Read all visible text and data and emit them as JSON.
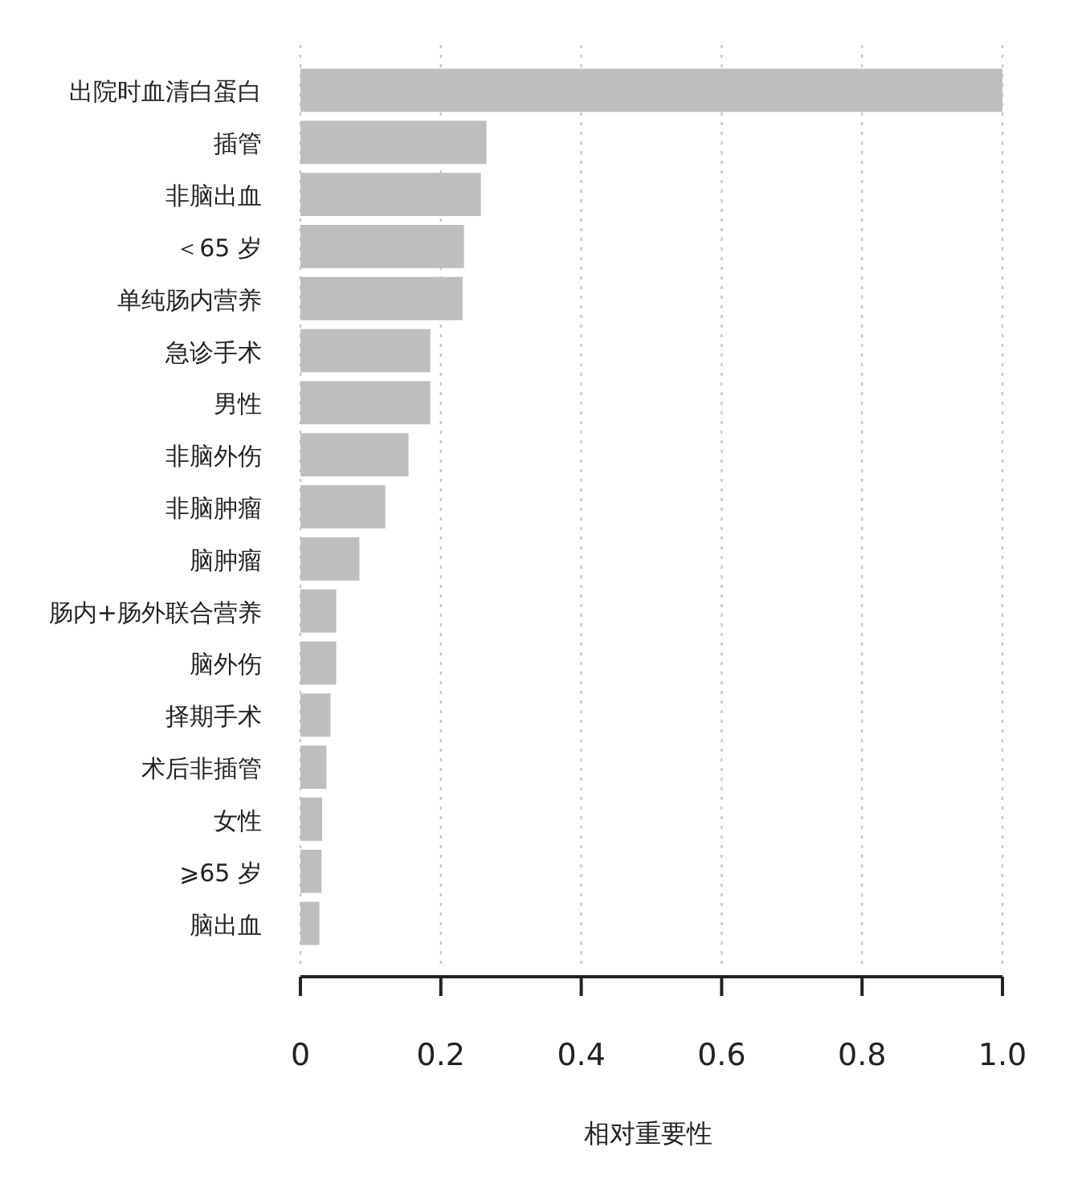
{
  "chart_data": {
    "type": "bar",
    "orientation": "horizontal",
    "xlabel": "相对重要性",
    "categories": [
      "出院时血清白蛋白",
      "插管",
      "非脑出血",
      "＜65 岁",
      "单纯肠内营养",
      "急诊手术",
      "男性",
      "非脑外伤",
      "非脑肿瘤",
      "脑肿瘤",
      "肠内+肠外联合营养",
      "脑外伤",
      "择期手术",
      "术后非插管",
      "女性",
      "⩾65 岁",
      "脑出血"
    ],
    "values": [
      1.0,
      0.265,
      0.257,
      0.233,
      0.231,
      0.185,
      0.185,
      0.154,
      0.121,
      0.084,
      0.051,
      0.051,
      0.043,
      0.037,
      0.031,
      0.03,
      0.027
    ],
    "color": "#bebebe",
    "xlim": [
      0,
      1
    ],
    "xticks": [
      0,
      0.2,
      0.4,
      0.6,
      0.8,
      {
        "value": 1,
        "label": "1.0"
      }
    ],
    "grid": "x"
  }
}
